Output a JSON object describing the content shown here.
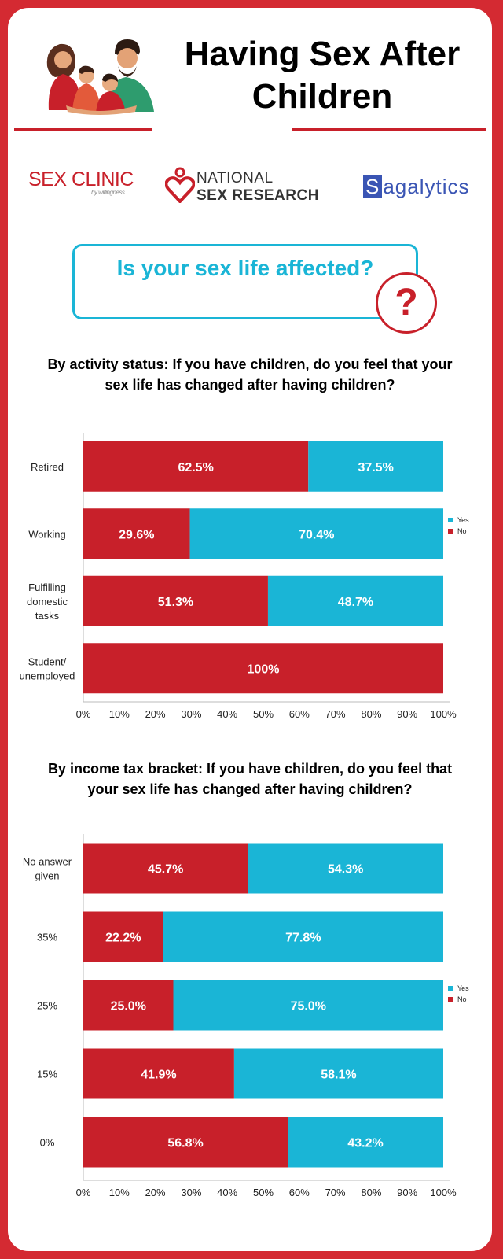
{
  "header": {
    "title": "Having Sex After Children"
  },
  "logos": {
    "sexclinic": {
      "main": "SEX CLINIC",
      "sub": "by willingness"
    },
    "nsr": {
      "line1": "NATIONAL",
      "line2": "SEX RESEARCH"
    },
    "sagalytics": {
      "first": "S",
      "rest": "agalytics"
    }
  },
  "question": {
    "text": "Is your sex life affected?",
    "icon": "question-mark-icon"
  },
  "colors": {
    "no": "#c8202a",
    "yes": "#1ab5d6",
    "brand_red": "#d42a32"
  },
  "chart_data": [
    {
      "type": "bar",
      "orientation": "horizontal",
      "stacked": true,
      "title": "By activity status: If you have children, do you feel that your sex life has changed after having children?",
      "categories": [
        "Retired",
        "Working",
        "Fulfilling domestic tasks",
        "Student/ unemployed"
      ],
      "series": [
        {
          "name": "No",
          "values": [
            62.5,
            29.6,
            51.3,
            100
          ],
          "labels": [
            "62.5%",
            "29.6%",
            "51.3%",
            "100%"
          ]
        },
        {
          "name": "Yes",
          "values": [
            37.5,
            70.4,
            48.7,
            0
          ],
          "labels": [
            "37.5%",
            "70.4%",
            "48.7%",
            ""
          ]
        }
      ],
      "xlim": [
        0,
        100
      ],
      "xticks": [
        "0%",
        "10%",
        "20%",
        "30%",
        "40%",
        "50%",
        "60%",
        "70%",
        "80%",
        "90%",
        "100%"
      ],
      "legend": [
        "Yes",
        "No"
      ],
      "legend_position": "right",
      "grid": false
    },
    {
      "type": "bar",
      "orientation": "horizontal",
      "stacked": true,
      "title": "By income tax bracket: If you have children, do you feel that your sex life has changed after having children?",
      "categories": [
        "No answer given",
        "35%",
        "25%",
        "15%",
        "0%"
      ],
      "series": [
        {
          "name": "No",
          "values": [
            45.7,
            22.2,
            25.0,
            41.9,
            56.8
          ],
          "labels": [
            "45.7%",
            "22.2%",
            "25.0%",
            "41.9%",
            "56.8%"
          ]
        },
        {
          "name": "Yes",
          "values": [
            54.3,
            77.8,
            75.0,
            58.1,
            43.2
          ],
          "labels": [
            "54.3%",
            "77.8%",
            "75.0%",
            "58.1%",
            "43.2%"
          ]
        }
      ],
      "xlim": [
        0,
        100
      ],
      "xticks": [
        "0%",
        "10%",
        "20%",
        "30%",
        "40%",
        "50%",
        "60%",
        "70%",
        "80%",
        "90%",
        "100%"
      ],
      "legend": [
        "Yes",
        "No"
      ],
      "legend_position": "right",
      "grid": false
    }
  ]
}
